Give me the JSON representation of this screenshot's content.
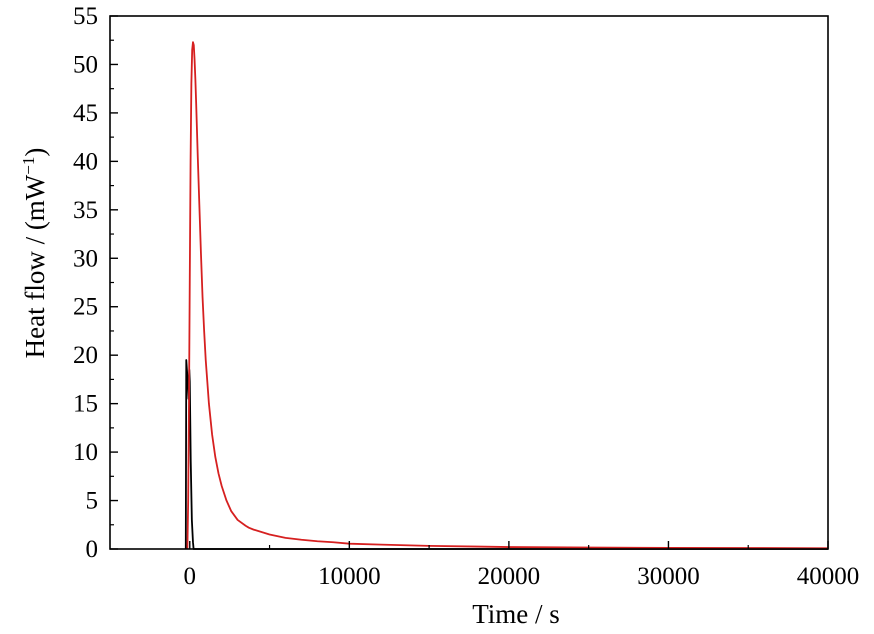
{
  "chart_data": {
    "type": "line",
    "title": "",
    "xlabel": "Time / s",
    "ylabel": {
      "prefix": "Heat flow / (mW",
      "superscript": "−1",
      "suffix": ")"
    },
    "xlim": [
      -5000,
      40000
    ],
    "ylim": [
      0,
      55
    ],
    "x_ticks": [
      0,
      10000,
      20000,
      30000,
      40000
    ],
    "x_tick_labels": [
      "0",
      "10000",
      "20000",
      "30000",
      "40000"
    ],
    "y_ticks": [
      0,
      5,
      10,
      15,
      20,
      25,
      30,
      35,
      40,
      45,
      50,
      55
    ],
    "y_tick_labels": [
      "0",
      "5",
      "10",
      "15",
      "20",
      "25",
      "30",
      "35",
      "40",
      "45",
      "50",
      "55"
    ],
    "grid": false,
    "legend": "none",
    "series": [
      {
        "color": "#000000",
        "x": [
          -250,
          -220,
          -150,
          -80,
          -30,
          0,
          60,
          130,
          200,
          240,
          260,
          300,
          1000,
          10000,
          40000
        ],
        "y": [
          0,
          19.5,
          17.8,
          15.5,
          18.5,
          17.3,
          9,
          3,
          0.7,
          0,
          0,
          0,
          0,
          0,
          0
        ]
      },
      {
        "color": "#d62020",
        "x": [
          -150,
          -100,
          -50,
          0,
          50,
          100,
          150,
          200,
          250,
          300,
          350,
          400,
          500,
          600,
          700,
          800,
          900,
          1000,
          1200,
          1400,
          1600,
          1800,
          2000,
          2300,
          2600,
          3000,
          3500,
          3700,
          4000,
          5000,
          6000,
          7000,
          8000,
          9000,
          10000,
          12000,
          15000,
          18000,
          20000,
          25000,
          30000,
          35000,
          40000
        ],
        "y": [
          0,
          5,
          15,
          28,
          40,
          48,
          51.5,
          52.3,
          52,
          50.5,
          48.5,
          46,
          40.5,
          35.5,
          30.5,
          26,
          22.5,
          19.5,
          15,
          11.8,
          9.5,
          7.8,
          6.5,
          5,
          3.9,
          3,
          2.4,
          2.2,
          2.0,
          1.5,
          1.15,
          0.95,
          0.8,
          0.7,
          0.55,
          0.45,
          0.32,
          0.25,
          0.2,
          0.15,
          0.12,
          0.1,
          0.08
        ]
      }
    ]
  }
}
